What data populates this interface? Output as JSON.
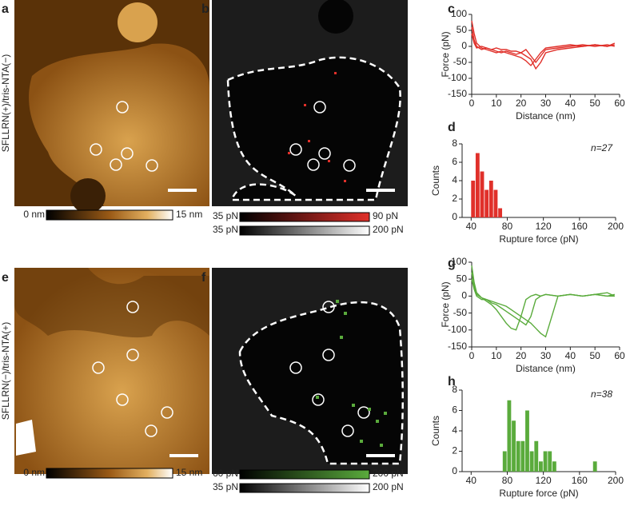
{
  "panel_labels": [
    "a",
    "b",
    "c",
    "d",
    "e",
    "f",
    "g",
    "h"
  ],
  "row_labels": [
    "SFLLRN(+)/tris-NTA(−)",
    "SFLLRN(−)/tris-NTA(+)"
  ],
  "colorbars": [
    {
      "min": "0 nm",
      "max": "15 nm"
    },
    {
      "min": "35 pN",
      "max": "90 pN"
    },
    {
      "min": "35 pN",
      "max": "200 pN"
    },
    {
      "min": "0 nm",
      "max": "15 nm"
    },
    {
      "min": "60 pN",
      "max": "200 pN"
    },
    {
      "min": "35 pN",
      "max": "200 pN"
    }
  ],
  "chart_data": [
    {
      "type": "line",
      "xlabel": "Distance (nm)",
      "ylabel": "Force (pN)",
      "x": [
        0,
        1,
        2,
        4,
        6,
        8,
        10,
        12,
        14,
        16,
        18,
        20,
        22,
        24,
        26,
        28,
        30,
        35,
        40,
        45,
        50,
        55,
        58
      ],
      "series": [
        {
          "color": "#e0302a",
          "values": [
            80,
            40,
            10,
            -5,
            -10,
            -15,
            -20,
            -15,
            -20,
            -25,
            -30,
            -35,
            -45,
            -60,
            -40,
            -20,
            -5,
            0,
            5,
            0,
            5,
            0,
            5
          ]
        },
        {
          "color": "#e0302a",
          "values": [
            60,
            20,
            0,
            -10,
            -5,
            -10,
            -15,
            -20,
            -15,
            -20,
            -25,
            -20,
            -10,
            -30,
            -50,
            -30,
            -10,
            -5,
            0,
            5,
            0,
            5,
            0
          ]
        },
        {
          "color": "#e0302a",
          "values": [
            40,
            10,
            -5,
            0,
            -5,
            -10,
            -5,
            -10,
            -10,
            -15,
            -15,
            -20,
            -30,
            -40,
            -70,
            -50,
            -20,
            -10,
            -5,
            0,
            5,
            0,
            10
          ]
        }
      ],
      "xlim": [
        0,
        60
      ],
      "ylim": [
        -150,
        100
      ],
      "xticks": [
        0,
        10,
        20,
        30,
        40,
        50,
        60
      ],
      "yticks": [
        -150,
        -100,
        -50,
        0,
        50,
        100
      ]
    },
    {
      "type": "histogram",
      "xlabel": "Rupture force (pN)",
      "ylabel": "Counts",
      "annotation": "n=27",
      "color": "#e0302a",
      "bins": [
        40,
        45,
        50,
        55,
        60,
        65,
        70,
        75
      ],
      "counts": [
        4,
        7,
        5,
        3,
        4,
        3,
        1
      ],
      "xlim": [
        30,
        200
      ],
      "ylim": [
        0,
        8
      ],
      "xticks": [
        40,
        80,
        120,
        160,
        200
      ],
      "yticks": [
        0,
        2,
        4,
        6,
        8
      ]
    },
    {
      "type": "line",
      "xlabel": "Distance (nm)",
      "ylabel": "Force (pN)",
      "x": [
        0,
        1,
        2,
        4,
        6,
        8,
        10,
        12,
        14,
        16,
        18,
        20,
        22,
        24,
        26,
        28,
        30,
        35,
        40,
        45,
        50,
        55,
        58
      ],
      "series": [
        {
          "color": "#5aab3c",
          "values": [
            90,
            40,
            10,
            -5,
            -15,
            -25,
            -40,
            -60,
            -80,
            -95,
            -100,
            -60,
            -10,
            0,
            5,
            0,
            5,
            0,
            5,
            0,
            5,
            0,
            5
          ]
        },
        {
          "color": "#5aab3c",
          "values": [
            70,
            30,
            5,
            -5,
            -10,
            -20,
            -25,
            -35,
            -45,
            -55,
            -65,
            -75,
            -85,
            -60,
            -10,
            0,
            5,
            0,
            5,
            0,
            5,
            0,
            0
          ]
        },
        {
          "color": "#5aab3c",
          "values": [
            50,
            20,
            0,
            -10,
            -10,
            -15,
            -20,
            -25,
            -30,
            -40,
            -50,
            -60,
            -70,
            -80,
            -95,
            -110,
            -120,
            0,
            5,
            0,
            5,
            10,
            0
          ]
        }
      ],
      "xlim": [
        0,
        60
      ],
      "ylim": [
        -150,
        100
      ],
      "xticks": [
        0,
        10,
        20,
        30,
        40,
        50,
        60
      ],
      "yticks": [
        -150,
        -100,
        -50,
        0,
        50,
        100
      ]
    },
    {
      "type": "histogram",
      "xlabel": "Rupture force (pN)",
      "ylabel": "Counts",
      "annotation": "n=38",
      "color": "#5aab3c",
      "bins": [
        75,
        80,
        85,
        90,
        95,
        100,
        105,
        110,
        115,
        120,
        125,
        130,
        135,
        140,
        145,
        150,
        155,
        160,
        165,
        170,
        175,
        180
      ],
      "counts": [
        2,
        7,
        5,
        3,
        3,
        6,
        2,
        3,
        1,
        2,
        2,
        1,
        0,
        0,
        0,
        0,
        0,
        0,
        0,
        0,
        1
      ],
      "xlim": [
        30,
        200
      ],
      "ylim": [
        0,
        8
      ],
      "xticks": [
        40,
        80,
        120,
        160,
        200
      ],
      "yticks": [
        0,
        2,
        4,
        6,
        8
      ]
    }
  ]
}
